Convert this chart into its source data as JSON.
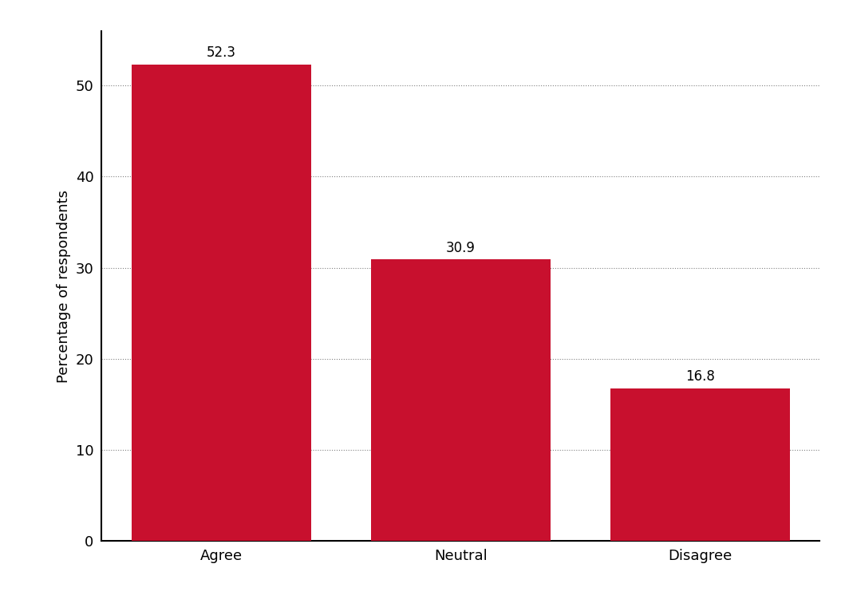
{
  "categories": [
    "Agree",
    "Neutral",
    "Disagree"
  ],
  "values": [
    52.3,
    30.9,
    16.8
  ],
  "bar_color": "#C8102E",
  "ylabel": "Percentage of respondents",
  "ylim": [
    0,
    56
  ],
  "yticks": [
    0,
    10,
    20,
    30,
    40,
    50
  ],
  "bar_width": 0.75,
  "background_color": "#ffffff",
  "label_fontsize": 12,
  "tick_fontsize": 13,
  "ylabel_fontsize": 13,
  "xlim": [
    -0.5,
    2.5
  ]
}
